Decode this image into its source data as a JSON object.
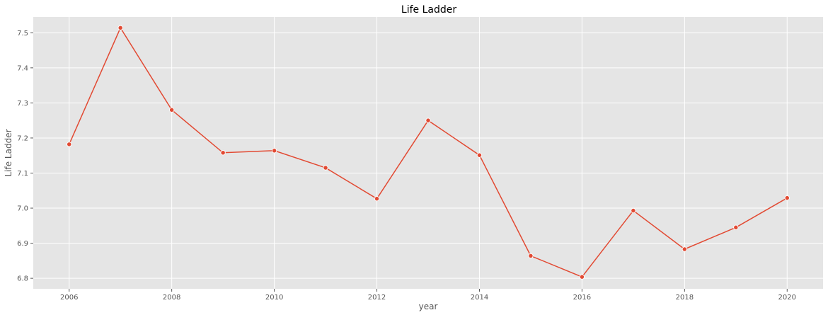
{
  "chart_data": {
    "type": "line",
    "title": "Life Ladder",
    "xlabel": "year",
    "ylabel": "Life Ladder",
    "x": [
      2006,
      2007,
      2008,
      2009,
      2010,
      2011,
      2012,
      2013,
      2014,
      2015,
      2016,
      2017,
      2018,
      2019,
      2020
    ],
    "series": [
      {
        "values": [
          7.182,
          7.514,
          7.28,
          7.158,
          7.164,
          7.115,
          7.027,
          7.25,
          7.151,
          6.864,
          6.804,
          6.993,
          6.883,
          6.945,
          7.029
        ]
      }
    ],
    "xlim": [
      2005.3,
      2020.7
    ],
    "ylim": [
      6.77,
      7.545
    ],
    "xticks": [
      "2006",
      "2008",
      "2010",
      "2012",
      "2014",
      "2016",
      "2018",
      "2020"
    ],
    "yticks": [
      "6.8",
      "6.9",
      "7.0",
      "7.1",
      "7.2",
      "7.3",
      "7.4",
      "7.5"
    ],
    "grid": true,
    "colors": {
      "line": "#e24a33",
      "background": "#e5e5e5",
      "grid": "#ffffff"
    }
  }
}
